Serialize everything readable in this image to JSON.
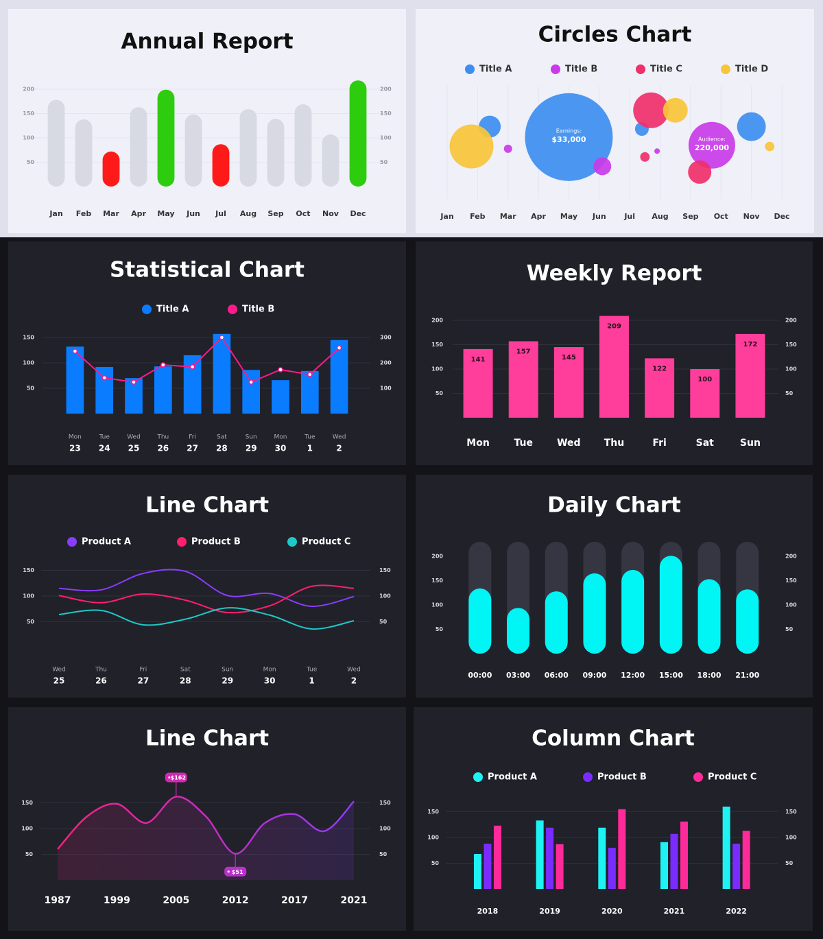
{
  "chart_data": [
    {
      "type": "bar",
      "title": "Annual Report",
      "categories": [
        "Jan",
        "Feb",
        "Mar",
        "Apr",
        "May",
        "Jun",
        "Jul",
        "Aug",
        "Sep",
        "Oct",
        "Nov",
        "Dec"
      ],
      "values": [
        178,
        138,
        72,
        163,
        199,
        148,
        87,
        159,
        139,
        169,
        107,
        218
      ],
      "colors": [
        "#d7d9e3",
        "#d7d9e3",
        "#ff1a1a",
        "#d7d9e3",
        "#2ecc0f",
        "#d7d9e3",
        "#ff1a1a",
        "#d7d9e3",
        "#d7d9e3",
        "#d7d9e3",
        "#d7d9e3",
        "#2ecc0f"
      ],
      "ylim": [
        0,
        220
      ],
      "yticks": [
        50,
        100,
        150,
        200
      ],
      "grid": true,
      "bar_style": "pill"
    },
    {
      "type": "bubble",
      "title": "Circles Chart",
      "xlim": [
        1,
        12
      ],
      "xticks": [
        {
          "value": 1,
          "label": "Jan"
        },
        {
          "value": 2,
          "label": "Feb"
        },
        {
          "value": 3,
          "label": "Mar"
        },
        {
          "value": 4,
          "label": "Apr"
        },
        {
          "value": 5,
          "label": "May"
        },
        {
          "value": 6,
          "label": "Jun"
        },
        {
          "value": 7,
          "label": "Jul"
        },
        {
          "value": 8,
          "label": "Aug"
        },
        {
          "value": 9,
          "label": "Sep"
        },
        {
          "value": 10,
          "label": "Oct"
        },
        {
          "value": 11,
          "label": "Nov"
        },
        {
          "value": 12,
          "label": "Dec"
        }
      ],
      "ylim": [
        0,
        100
      ],
      "grid": true,
      "series": [
        {
          "name": "Title A",
          "color": "#3d8ef0",
          "x": [
            2.4,
            5,
            7.4,
            11
          ],
          "values": [
            62,
            53,
            60,
            62
          ],
          "sizes": [
            64,
            1024,
            25,
            110
          ],
          "annotations": [
            null,
            {
              "title": "Earnings:",
              "text": "$33,000"
            },
            null,
            null
          ]
        },
        {
          "name": "Title B",
          "color": "#c93be8",
          "x": [
            3,
            6.1,
            7.9,
            9.7
          ],
          "values": [
            43,
            28,
            41,
            46
          ],
          "sizes": [
            9,
            42,
            4,
            289
          ],
          "annotations": [
            null,
            null,
            null,
            {
              "title": "Audience:",
              "text": "220,000"
            }
          ]
        },
        {
          "name": "Title C",
          "color": "#f0306a",
          "x": [
            7.7,
            7.5,
            9.3
          ],
          "values": [
            76,
            36,
            23
          ],
          "sizes": [
            169,
            12,
            72
          ]
        },
        {
          "name": "Title D",
          "color": "#f8c53a",
          "x": [
            1.8,
            8.5,
            11.6
          ],
          "values": [
            45,
            76,
            45
          ],
          "sizes": [
            256,
            81,
            12
          ]
        }
      ]
    },
    {
      "type": "combo",
      "title": "Statistical Chart",
      "categories": [
        [
          "Mon",
          "23"
        ],
        [
          "Tue",
          "24"
        ],
        [
          "Wed",
          "25"
        ],
        [
          "Thu",
          "26"
        ],
        [
          "Fri",
          "27"
        ],
        [
          "Sat",
          "28"
        ],
        [
          "Sun",
          "29"
        ],
        [
          "Mon",
          "30"
        ],
        [
          "Tue",
          "1"
        ],
        [
          "Wed",
          "2"
        ]
      ],
      "series": [
        {
          "name": "Title A",
          "color": "#0a7cff",
          "type": "bar",
          "values": [
            132,
            92,
            70,
            93,
            115,
            157,
            86,
            66,
            84,
            145
          ]
        },
        {
          "name": "Title B",
          "color": "#ff1a8c",
          "type": "line",
          "axis": "y2",
          "values": [
            246,
            141,
            124,
            192,
            184,
            300,
            124,
            173,
            154,
            259
          ]
        }
      ],
      "ylim": [
        0,
        160
      ],
      "yticks": [
        50,
        100,
        150
      ],
      "y2lim": [
        0,
        320
      ],
      "y2ticks": [
        100,
        200,
        300
      ],
      "grid": true
    },
    {
      "type": "bar",
      "title": "Weekly Report",
      "categories": [
        "Mon",
        "Tue",
        "Wed",
        "Thu",
        "Fri",
        "Sat",
        "Sun"
      ],
      "values": [
        141,
        157,
        145,
        209,
        122,
        100,
        172
      ],
      "color": "#ff3d9a",
      "ylim": [
        0,
        210
      ],
      "yticks": [
        50,
        100,
        150,
        200
      ],
      "grid": true,
      "data_labels": true
    },
    {
      "type": "line",
      "title": "Line Chart",
      "smooth": true,
      "categories": [
        [
          "Wed",
          "25"
        ],
        [
          "Thu",
          "26"
        ],
        [
          "Fri",
          "27"
        ],
        [
          "Sat",
          "28"
        ],
        [
          "Sun",
          "29"
        ],
        [
          "Mon",
          "30"
        ],
        [
          "Tue",
          "1"
        ],
        [
          "Wed",
          "2"
        ]
      ],
      "series": [
        {
          "name": "Product A",
          "color": "#8a3cff",
          "values": [
            115,
            112,
            144,
            148,
            101,
            105,
            80,
            99
          ]
        },
        {
          "name": "Product B",
          "color": "#ff1f6b",
          "values": [
            101,
            87,
            104,
            92,
            68,
            81,
            119,
            115
          ]
        },
        {
          "name": "Product C",
          "color": "#1ec8c8",
          "values": [
            64,
            72,
            44,
            55,
            77,
            63,
            36,
            52
          ]
        }
      ],
      "ylim": [
        0,
        160
      ],
      "yticks": [
        50,
        100,
        150
      ],
      "grid": true
    },
    {
      "type": "bar",
      "title": "Daily Chart",
      "categories": [
        "00:00",
        "03:00",
        "06:00",
        "09:00",
        "12:00",
        "15:00",
        "18:00",
        "21:00"
      ],
      "values": [
        134,
        94,
        128,
        165,
        172,
        201,
        153,
        132
      ],
      "color": "#00f5f5",
      "ylim": [
        0,
        230
      ],
      "yticks": [
        50,
        100,
        150,
        200
      ],
      "grid": false,
      "bar_style": "pill",
      "background_bars": true
    },
    {
      "type": "area",
      "title": "Line Chart",
      "smooth": true,
      "categories": [
        "1987",
        null,
        "1999",
        null,
        "2005",
        null,
        "2012",
        null,
        "2017",
        null,
        "2021"
      ],
      "values": [
        60,
        124,
        148,
        111,
        162,
        124,
        51,
        111,
        128,
        95,
        153
      ],
      "value_labels": [
        null,
        null,
        null,
        null,
        "$162",
        null,
        "$51",
        null,
        null,
        null,
        null
      ],
      "colors": [
        "#ff1f7a",
        "#8a3cff"
      ],
      "ylim": [
        0,
        170
      ],
      "yticks": [
        50,
        100,
        150
      ],
      "grid": true
    },
    {
      "type": "bar",
      "title": "Column Chart",
      "categories": [
        "2018",
        "2019",
        "2020",
        "2021",
        "2022"
      ],
      "series": [
        {
          "name": "Product A",
          "color": "#1ef2f2",
          "values": [
            68,
            133,
            119,
            91,
            160
          ]
        },
        {
          "name": "Product B",
          "color": "#7a2cff",
          "values": [
            88,
            119,
            80,
            107,
            88
          ]
        },
        {
          "name": "Product C",
          "color": "#ff2a9a",
          "values": [
            123,
            87,
            155,
            131,
            113
          ]
        }
      ],
      "ylim": [
        0,
        170
      ],
      "yticks": [
        50,
        100,
        150
      ],
      "grid": true
    }
  ]
}
